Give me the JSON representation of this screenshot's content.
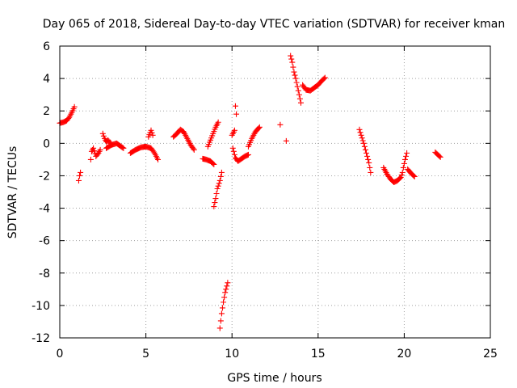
{
  "chart_data": {
    "type": "scatter",
    "title": "Day 065 of 2018, Sidereal Day-to-day VTEC variation (SDTVAR) for receiver kman",
    "xlabel": "GPS time / hours",
    "ylabel": "SDTVAR / TECUs",
    "xlim": [
      0,
      25
    ],
    "ylim": [
      -12,
      6
    ],
    "xticks": [
      0,
      5,
      10,
      15,
      20,
      25
    ],
    "yticks": [
      -12,
      -10,
      -8,
      -6,
      -4,
      -2,
      0,
      2,
      4,
      6
    ],
    "xtick_labels": [
      "0",
      "5",
      "10",
      "15",
      "20",
      "25"
    ],
    "ytick_labels": [
      "-12",
      "-10",
      "-8",
      "-6",
      "-4",
      "-2",
      "0",
      "2",
      "4",
      "6"
    ],
    "grid": true,
    "marker": "+",
    "color": "#ff0000",
    "segments": [
      [
        [
          0.0,
          1.25
        ],
        [
          0.2,
          1.3
        ],
        [
          0.4,
          1.4
        ],
        [
          0.55,
          1.6
        ],
        [
          0.7,
          1.9
        ],
        [
          0.85,
          2.25
        ]
      ],
      [
        [
          1.1,
          -2.3
        ],
        [
          1.15,
          -2.0
        ],
        [
          1.2,
          -1.8
        ]
      ],
      [
        [
          1.8,
          -1.0
        ],
        [
          1.85,
          -0.5
        ],
        [
          1.95,
          -0.3
        ],
        [
          2.1,
          -0.8
        ],
        [
          2.25,
          -0.6
        ],
        [
          2.35,
          -0.4
        ]
      ],
      [
        [
          2.5,
          0.6
        ],
        [
          2.6,
          0.3
        ],
        [
          2.7,
          0.1
        ],
        [
          2.8,
          0.2
        ],
        [
          2.95,
          0.0
        ]
      ],
      [
        [
          2.7,
          -0.3
        ],
        [
          3.0,
          -0.1
        ],
        [
          3.3,
          0.0
        ],
        [
          3.5,
          -0.15
        ],
        [
          3.7,
          -0.3
        ]
      ],
      [
        [
          4.1,
          -0.6
        ],
        [
          4.4,
          -0.4
        ],
        [
          4.7,
          -0.25
        ],
        [
          5.0,
          -0.2
        ],
        [
          5.3,
          -0.3
        ],
        [
          5.5,
          -0.6
        ],
        [
          5.7,
          -1.0
        ]
      ],
      [
        [
          5.15,
          0.4
        ],
        [
          5.3,
          0.8
        ],
        [
          5.4,
          0.5
        ]
      ],
      [
        [
          6.6,
          0.4
        ],
        [
          6.8,
          0.6
        ],
        [
          7.0,
          0.85
        ],
        [
          7.2,
          0.7
        ],
        [
          7.4,
          0.3
        ],
        [
          7.6,
          -0.1
        ],
        [
          7.8,
          -0.4
        ]
      ],
      [
        [
          8.3,
          -0.95
        ],
        [
          8.5,
          -1.0
        ],
        [
          8.75,
          -1.1
        ],
        [
          8.95,
          -1.3
        ]
      ],
      [
        [
          8.6,
          -0.2
        ],
        [
          8.75,
          0.2
        ],
        [
          8.9,
          0.6
        ],
        [
          9.05,
          1.0
        ],
        [
          9.2,
          1.3
        ]
      ],
      [
        [
          8.95,
          -3.9
        ],
        [
          9.05,
          -3.4
        ],
        [
          9.15,
          -2.8
        ],
        [
          9.3,
          -2.3
        ],
        [
          9.4,
          -1.8
        ]
      ],
      [
        [
          9.3,
          -11.4
        ],
        [
          9.4,
          -10.5
        ],
        [
          9.5,
          -9.8
        ],
        [
          9.6,
          -9.2
        ],
        [
          9.75,
          -8.6
        ]
      ],
      [
        [
          10.0,
          0.5
        ],
        [
          10.15,
          0.8
        ]
      ],
      [
        [
          10.2,
          2.3
        ],
        [
          10.25,
          1.8
        ]
      ],
      [
        [
          10.05,
          -0.3
        ],
        [
          10.2,
          -0.9
        ],
        [
          10.35,
          -1.1
        ],
        [
          10.55,
          -0.95
        ],
        [
          10.75,
          -0.8
        ],
        [
          10.95,
          -0.7
        ]
      ],
      [
        [
          10.95,
          -0.2
        ],
        [
          11.15,
          0.3
        ],
        [
          11.35,
          0.7
        ],
        [
          11.6,
          1.0
        ]
      ],
      [
        [
          12.8,
          1.15
        ]
      ],
      [
        [
          13.15,
          0.15
        ]
      ],
      [
        [
          13.4,
          5.4
        ],
        [
          13.5,
          5.0
        ],
        [
          13.6,
          4.4
        ],
        [
          13.7,
          4.0
        ],
        [
          13.8,
          3.5
        ],
        [
          13.9,
          3.0
        ],
        [
          14.0,
          2.5
        ]
      ],
      [
        [
          14.1,
          3.6
        ],
        [
          14.3,
          3.3
        ],
        [
          14.55,
          3.25
        ],
        [
          14.8,
          3.45
        ],
        [
          15.0,
          3.6
        ],
        [
          15.2,
          3.85
        ],
        [
          15.4,
          4.05
        ]
      ],
      [
        [
          17.4,
          0.85
        ],
        [
          17.5,
          0.5
        ],
        [
          17.65,
          0.0
        ],
        [
          17.8,
          -0.6
        ],
        [
          17.95,
          -1.2
        ],
        [
          18.05,
          -1.8
        ]
      ],
      [
        [
          18.8,
          -1.5
        ],
        [
          19.0,
          -1.9
        ],
        [
          19.2,
          -2.2
        ],
        [
          19.4,
          -2.4
        ],
        [
          19.6,
          -2.3
        ],
        [
          19.8,
          -2.1
        ],
        [
          19.9,
          -1.8
        ]
      ],
      [
        [
          19.95,
          -1.5
        ],
        [
          20.05,
          -1.0
        ],
        [
          20.15,
          -0.6
        ]
      ],
      [
        [
          20.2,
          -1.6
        ],
        [
          20.4,
          -1.85
        ],
        [
          20.6,
          -2.05
        ]
      ],
      [
        [
          21.8,
          -0.55
        ],
        [
          21.95,
          -0.7
        ],
        [
          22.1,
          -0.85
        ]
      ]
    ]
  }
}
